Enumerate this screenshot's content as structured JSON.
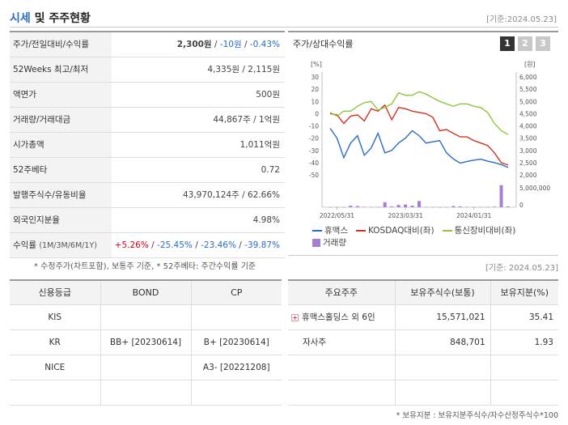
{
  "header": {
    "title_hl": "시세",
    "title_rest": "및 주주현황",
    "base_date": "[기준:2024.05.23]"
  },
  "summary": {
    "price_label": "주가/전일대비/수익률",
    "price": "2,300원",
    "sep1": " / ",
    "change": "-10원",
    "sep2": " / ",
    "change_pct": "-0.43%",
    "w52_label": "52Weeks 최고/최저",
    "w52_value": "4,335원 / 2,115원",
    "par_label": "액면가",
    "par_value": "500원",
    "volume_label": "거래량/거래대금",
    "volume_value": "44,867주 / 1억원",
    "mcap_label": "시가총액",
    "mcap_value": "1,011억원",
    "beta_label": "52주베타",
    "beta_value": "0.72",
    "shares_label": "발행주식수/유동비율",
    "shares_value": "43,970,124주 / 62.66%",
    "foreign_label": "외국인지분율",
    "foreign_value": "4.98%",
    "return_label": "수익률",
    "return_label_small": "(1M/3M/6M/1Y)",
    "ret_1m": "+5.26%",
    "ret_3m": "-25.45%",
    "ret_6m": "-23.46%",
    "ret_1y": "-39.87%",
    "ret_sep": "/"
  },
  "notes": {
    "left_note": "* 수정주가(차트포함), 보통주 기준, * 52주베타: 주간수익률 기준",
    "right_date": "[기준: 2024.05.23]",
    "bottom_note": "* 보유지분 : 보유지분주식수/자수산정주식수*100"
  },
  "chart": {
    "title": "주가/상대수익률",
    "tabs": [
      "1",
      "2",
      "3"
    ],
    "left_unit": "[%]",
    "right_unit": "[원]",
    "legend": {
      "series1": "휴맥스",
      "series2": "KOSDAQ대비(좌)",
      "series3": "통신장비대비(좌)",
      "volume": "거래량"
    },
    "colors": {
      "humax": "#2b6cc4",
      "kosdaq": "#d0341f",
      "telecom": "#8dc63f",
      "volume": "#a77fd1"
    }
  },
  "chart_data": {
    "type": "line",
    "x_ticks": [
      "2022/05/31",
      "2023/03/31",
      "2024/01/31"
    ],
    "y_left_ticks": [
      "30",
      "20",
      "10",
      "0",
      "-10",
      "-20",
      "-30",
      "-40",
      "-50"
    ],
    "y_right_ticks": [
      "6,000",
      "5,500",
      "5,000",
      "4,500",
      "4,000",
      "3,500",
      "3,000",
      "2,500",
      "2,000"
    ],
    "ylim_left": [
      -50,
      30
    ],
    "ylim_right": [
      2000,
      6000
    ],
    "vol_tick": "5,000,000",
    "vol_zero": "0",
    "n_points": 27,
    "series": [
      {
        "name": "휴맥스",
        "axis": "right",
        "values": [
          3900,
          3500,
          2700,
          3300,
          3600,
          2800,
          3100,
          3700,
          2900,
          3000,
          3300,
          3500,
          3800,
          3600,
          3300,
          3350,
          3400,
          2900,
          2650,
          2480,
          2550,
          2600,
          2640,
          2560,
          2500,
          2420,
          2300
        ]
      },
      {
        "name": "KOSDAQ대비(좌)",
        "axis": "left",
        "values": [
          0,
          -1,
          -8,
          -2,
          -1,
          -6,
          4,
          2,
          7,
          -5,
          5,
          4,
          2,
          1,
          0,
          -3,
          -14,
          -13,
          -16,
          -19,
          -19,
          -22,
          -24,
          -26,
          -32,
          -40,
          -42
        ]
      },
      {
        "name": "통신장비대비(좌)",
        "axis": "left",
        "values": [
          1,
          -2,
          2,
          2,
          6,
          9,
          10,
          3,
          5,
          8,
          17,
          15,
          15,
          18,
          16,
          13,
          10,
          8,
          6,
          8,
          8,
          6,
          5,
          1,
          -8,
          -14,
          -17
        ]
      },
      {
        "name": "거래량",
        "axis": "volume",
        "values": [
          50000,
          80000,
          60000,
          400000,
          300000,
          100000,
          90000,
          70000,
          1300000,
          200000,
          600000,
          700000,
          400000,
          1600000,
          100000,
          80000,
          60000,
          50000,
          300000,
          200000,
          90000,
          80000,
          70000,
          60000,
          150000,
          5700000,
          200000
        ]
      }
    ]
  },
  "credit": {
    "headers": [
      "신용등급",
      "BOND",
      "CP"
    ],
    "rows": [
      [
        "KIS",
        "",
        ""
      ],
      [
        "KR",
        "BB+ [20230614]",
        "B+ [20230614]"
      ],
      [
        "NICE",
        "",
        "A3- [20221208]"
      ],
      [
        "",
        "",
        ""
      ]
    ]
  },
  "holders": {
    "headers": [
      "주요주주",
      "보유주식수(보통)",
      "보유지분(%)"
    ],
    "rows": [
      {
        "name": "휴맥스홀딩스 외 6인",
        "shares": "15,571,021",
        "pct": "35.41",
        "expandable": true
      },
      {
        "name": "자사주",
        "shares": "848,701",
        "pct": "1.93",
        "expandable": false
      },
      {
        "name": "",
        "shares": "",
        "pct": "",
        "expandable": false
      },
      {
        "name": "",
        "shares": "",
        "pct": "",
        "expandable": false
      }
    ]
  }
}
